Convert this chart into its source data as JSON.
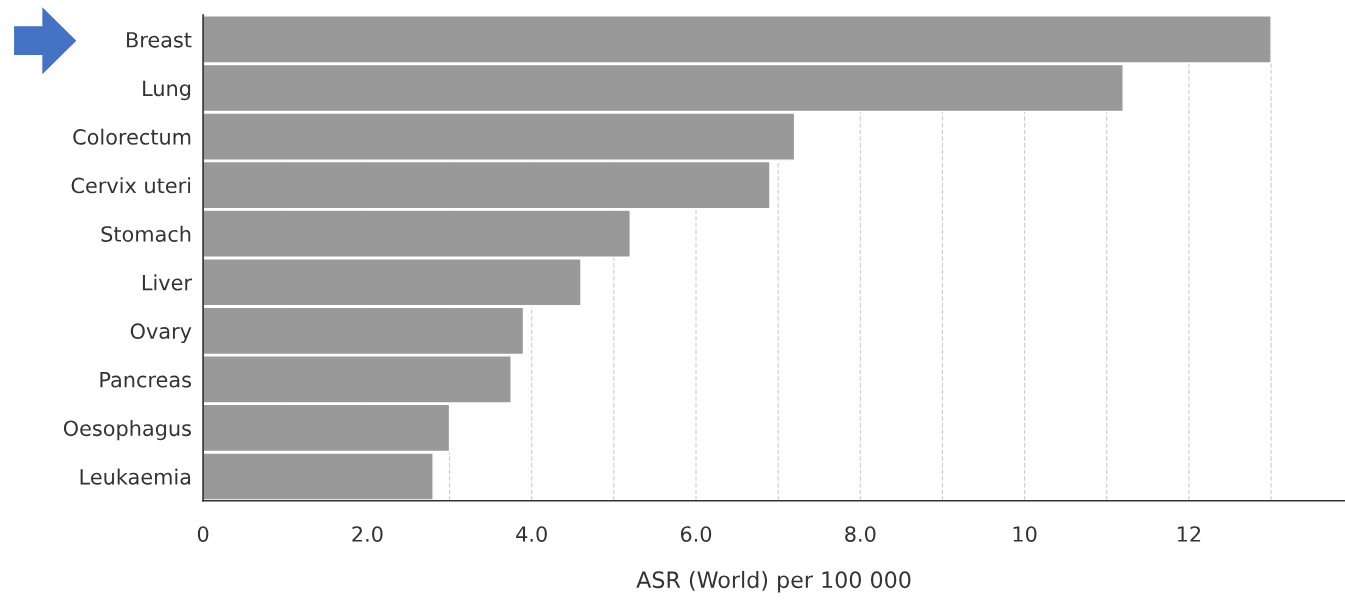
{
  "chart_data": {
    "type": "bar",
    "orientation": "horizontal",
    "categories": [
      "Breast",
      "Lung",
      "Colorectum",
      "Cervix uteri",
      "Stomach",
      "Liver",
      "Ovary",
      "Pancreas",
      "Oesophagus",
      "Leukaemia"
    ],
    "values": [
      13.0,
      11.2,
      7.2,
      6.9,
      5.2,
      4.6,
      3.9,
      3.75,
      3.0,
      2.8
    ],
    "color": "#999999",
    "xlabel": "ASR (World) per 100 000",
    "xlim": [
      0,
      13.9
    ],
    "xticks": [
      0,
      {
        "value": 1,
        "label": null
      },
      {
        "value": 2,
        "label": "2.0"
      },
      {
        "value": 3,
        "label": null
      },
      {
        "value": 4,
        "label": "4.0"
      },
      {
        "value": 5,
        "label": null
      },
      {
        "value": 6,
        "label": "6.0"
      },
      {
        "value": 7,
        "label": null
      },
      {
        "value": 8,
        "label": "8.0"
      },
      {
        "value": 9,
        "label": null
      },
      10,
      {
        "value": 11,
        "label": null
      },
      12,
      {
        "value": 13,
        "label": null
      }
    ],
    "grid": "x"
  }
}
